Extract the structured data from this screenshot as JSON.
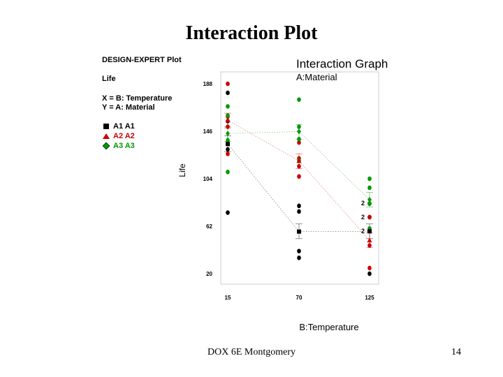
{
  "slide": {
    "title": "Interaction Plot",
    "footer": "DOX 6E Montgomery",
    "page_number": "14"
  },
  "info_panel": {
    "software": "DESIGN-EXPERT Plot",
    "response": "Life",
    "x_factor": "X = B: Temperature",
    "y_factor": "Y = A: Material",
    "legend": [
      {
        "label": "A1 A1",
        "color": "#000000",
        "marker": "square"
      },
      {
        "label": "A2 A2",
        "color": "#cc0000",
        "marker": "triangle"
      },
      {
        "label": "A3 A3",
        "color": "#009900",
        "marker": "diamond"
      }
    ]
  },
  "chart_data": {
    "type": "line",
    "title": "Interaction Graph",
    "subtitle": "A:Material",
    "xlabel": "B:Temperature",
    "ylabel": "Life",
    "categories": [
      "15",
      "70",
      "125"
    ],
    "yticks": [
      "20",
      "62",
      "104",
      "146",
      "188"
    ],
    "ylim": [
      20,
      188
    ],
    "grid": false,
    "series": [
      {
        "name": "A1",
        "color": "#000000",
        "marker": "square",
        "means": [
          134.75,
          57.25,
          57.5
        ],
        "points": [
          [
            130,
            155,
            74,
            180
          ],
          [
            34,
            40,
            80,
            75
          ],
          [
            20,
            70,
            82,
            58
          ]
        ],
        "ci": [
          [
            128,
            142
          ],
          [
            51,
            64
          ],
          [
            51,
            64
          ]
        ]
      },
      {
        "name": "A2",
        "color": "#cc0000",
        "marker": "triangle",
        "means": [
          155.75,
          119.75,
          49.5
        ],
        "points": [
          [
            150,
            188,
            159,
            126
          ],
          [
            136,
            122,
            106,
            115
          ],
          [
            25,
            70,
            58,
            45
          ]
        ],
        "ci": [
          [
            149,
            162
          ],
          [
            113,
            126
          ],
          [
            43,
            56
          ]
        ]
      },
      {
        "name": "A3",
        "color": "#009900",
        "marker": "diamond",
        "means": [
          144,
          145.75,
          85.5
        ],
        "points": [
          [
            138,
            110,
            168,
            160
          ],
          [
            174,
            120,
            150,
            139
          ],
          [
            96,
            104,
            82,
            60
          ]
        ],
        "ci": [
          [
            137,
            150
          ],
          [
            139,
            152
          ],
          [
            79,
            92
          ]
        ]
      }
    ],
    "annotations": [
      "2",
      "2",
      "2"
    ]
  }
}
